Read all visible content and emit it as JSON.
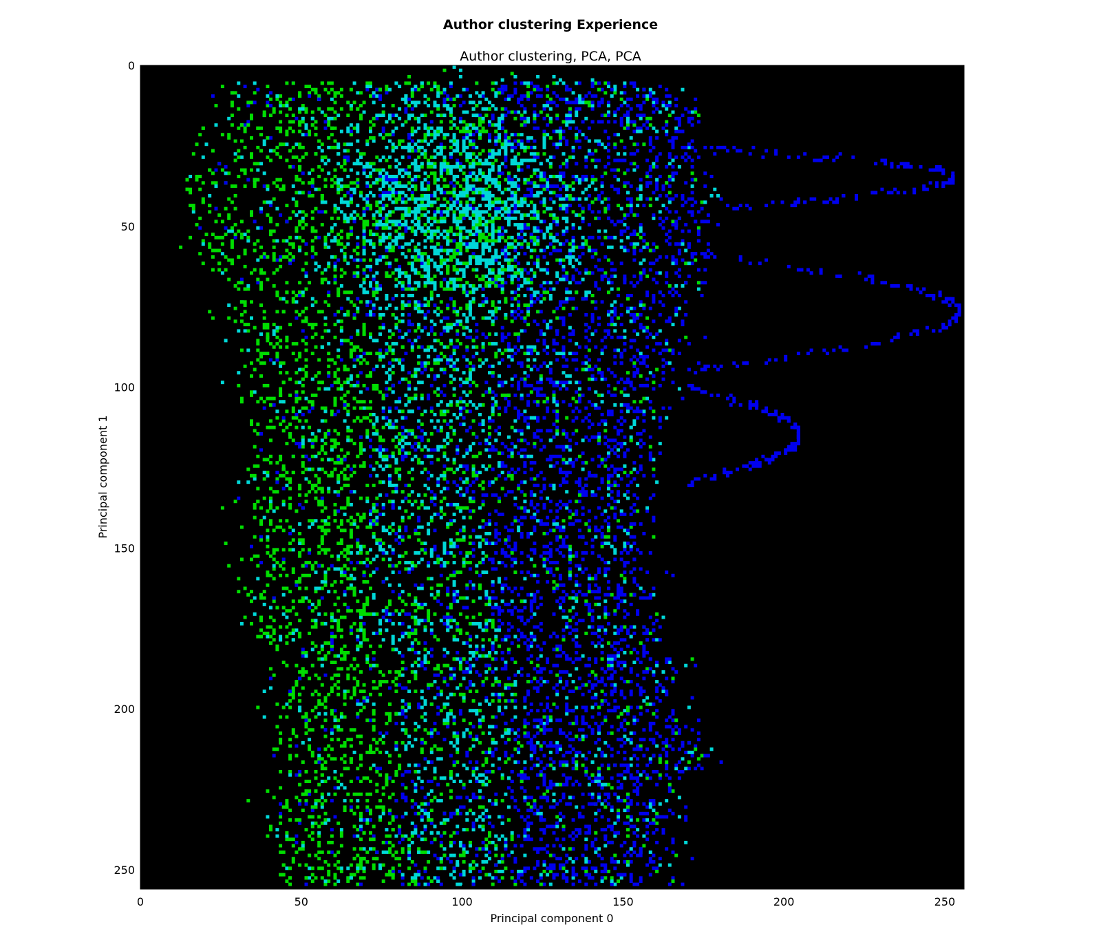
{
  "figure_title": "Author clustering Experience",
  "chart_data": {
    "type": "heatmap",
    "title": "Author clustering, PCA, PCA",
    "xlabel": "Principal component 0",
    "ylabel": "Principal component 1",
    "xlim": [
      0,
      256
    ],
    "ylim": [
      256,
      0
    ],
    "y_axis_inverted": true,
    "xticks": [
      0,
      50,
      100,
      150,
      200,
      250
    ],
    "yticks": [
      0,
      50,
      100,
      150,
      200,
      250
    ],
    "xtick_labels": [
      "0",
      "50",
      "100",
      "150",
      "200",
      "250"
    ],
    "ytick_labels": [
      "0",
      "50",
      "100",
      "150",
      "200",
      "250"
    ],
    "background_color": "#000000",
    "grid": false,
    "legend": "none",
    "series": [
      {
        "color": "#00dd00",
        "description": "left-side cluster",
        "center_x": 62,
        "spread": "x 26-110, y 5-256"
      },
      {
        "color": "#00d8d8",
        "description": "central cluster",
        "center_x": 100,
        "spread": "x 55-145, y 5-256"
      },
      {
        "color": "#0000ee",
        "description": "right-side cluster with sparse arcs",
        "center_x": 135,
        "spread": "x 60-256, y 5-256"
      }
    ]
  }
}
